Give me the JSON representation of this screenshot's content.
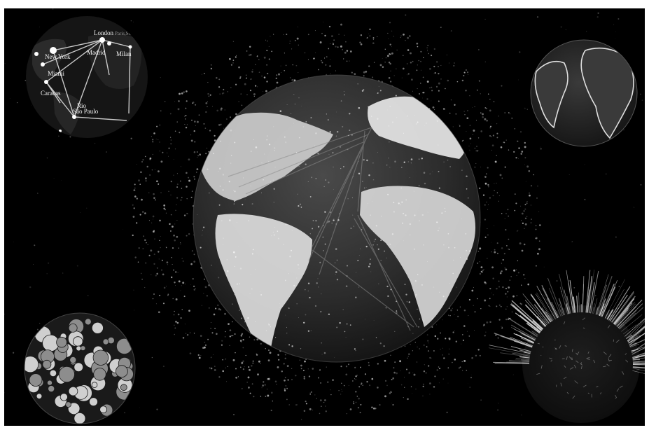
{
  "scene": {
    "background": "#000000",
    "main_globe": {
      "land_color": "#d8d8d8",
      "ocean_color": "#2a2a2a",
      "debris_color": "#bdbdbd"
    },
    "corner_globes": [
      {
        "id": "network-globe",
        "cities": [
          "London",
          "Paris,St..",
          "Madrid",
          "Milan",
          "New York",
          "Miami",
          "Caracas",
          "Rio",
          "São Paulo"
        ]
      },
      {
        "id": "outline-globe"
      },
      {
        "id": "bubble-globe"
      },
      {
        "id": "spike-globe"
      }
    ]
  }
}
